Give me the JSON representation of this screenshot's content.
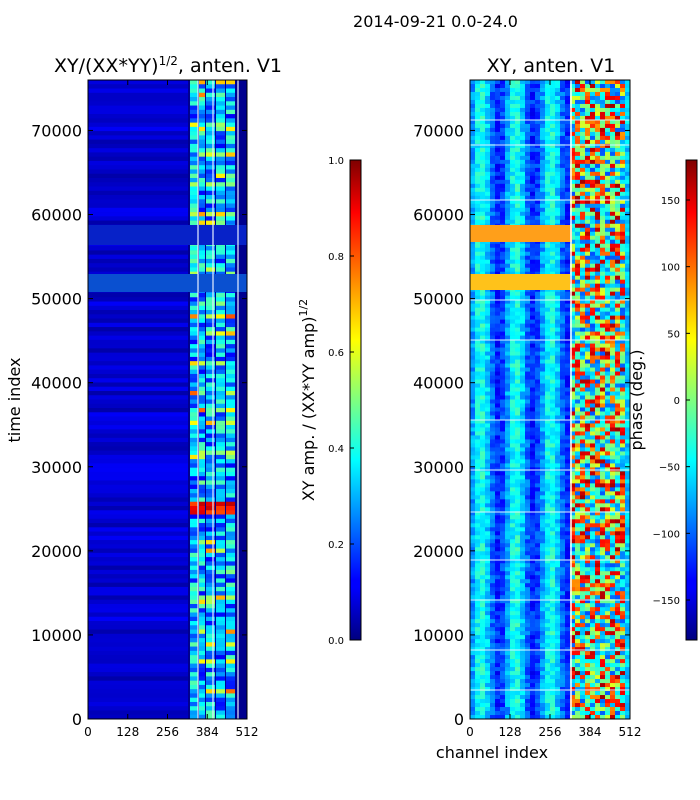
{
  "figure_title": "2014-09-21 0.0-24.0",
  "chart_data": [
    {
      "type": "heatmap",
      "title_base": "XY/(XX*YY)",
      "title_exp": "1/2",
      "title_suffix": ", anten. V1",
      "xlabel": "",
      "ylabel": "time index",
      "xlim": [
        0,
        512
      ],
      "ylim": [
        0,
        76000
      ],
      "xticks": [
        0,
        128,
        256,
        384,
        512
      ],
      "yticks": [
        0,
        10000,
        20000,
        30000,
        40000,
        50000,
        60000,
        70000
      ],
      "colormap": "jet",
      "colorbar": {
        "label_base": "XY amp. / (XX*YY amp)",
        "label_exp": "1/2",
        "range": [
          0.0,
          1.0
        ],
        "ticks": [
          "0.0",
          "0.2",
          "0.4",
          "0.6",
          "0.8",
          "1.0"
        ]
      }
    },
    {
      "type": "heatmap",
      "title": "XY, anten. V1",
      "xlabel": "channel index",
      "ylabel": "",
      "xlim": [
        0,
        512
      ],
      "ylim": [
        0,
        76000
      ],
      "xticks": [
        0,
        128,
        256,
        384,
        512
      ],
      "yticks": [
        0,
        10000,
        20000,
        30000,
        40000,
        50000,
        60000,
        70000
      ],
      "colormap": "jet",
      "colorbar": {
        "label": "phase (deg.)",
        "range": [
          -180,
          180
        ],
        "ticks": [
          "−150",
          "−100",
          "−50",
          "0",
          "50",
          "100",
          "150"
        ]
      }
    }
  ],
  "colors": {
    "jet_low": "#00007f",
    "jet_high": "#7f0000"
  }
}
